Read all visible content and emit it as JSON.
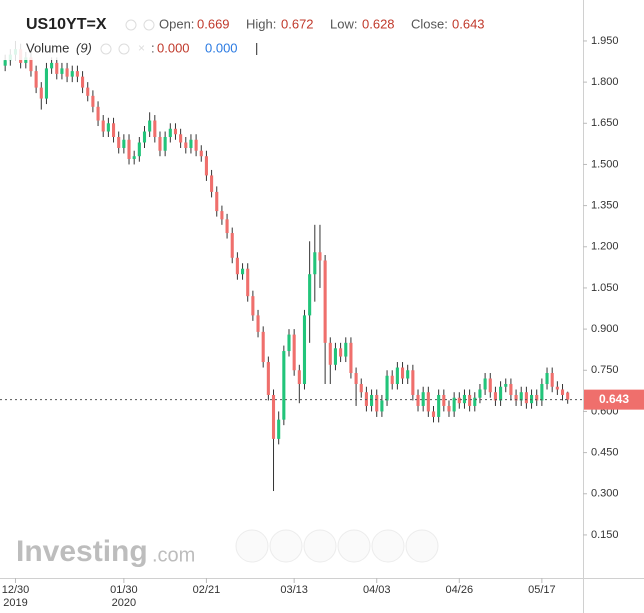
{
  "chart_data": {
    "type": "candlestick",
    "symbol": "US10YT=X",
    "header_labels": {
      "open": "Open:",
      "high": "High:",
      "low": "Low:",
      "close": "Close:"
    },
    "volume_label": "Volume",
    "volume_period": "(9)",
    "volume_values": [
      "0.000",
      "0.000"
    ],
    "watermark": {
      "brand": "Investing",
      "suffix": ".com"
    },
    "up_color": "#22c47a",
    "down_color": "#ef6f6c",
    "grid": false,
    "xlim": [
      -1,
      111
    ],
    "xticks": [
      {
        "value": 2,
        "label": "12/30"
      },
      {
        "value": 23,
        "label": "01/30"
      },
      {
        "value": 39,
        "label": "02/21"
      },
      {
        "value": 56,
        "label": "03/13"
      },
      {
        "value": 72,
        "label": "04/03"
      },
      {
        "value": 88,
        "label": "04/26"
      },
      {
        "value": 104,
        "label": "05/17"
      }
    ],
    "xtick_years": [
      {
        "value": 2,
        "label": "2019"
      },
      {
        "value": 23,
        "label": "2020"
      }
    ],
    "ylim": [
      0.004,
      2.081
    ],
    "yticks": [
      {
        "value": 1.95,
        "label": "1.950"
      },
      {
        "value": 1.8,
        "label": "1.800"
      },
      {
        "value": 1.65,
        "label": "1.650"
      },
      {
        "value": 1.5,
        "label": "1.500"
      },
      {
        "value": 1.35,
        "label": "1.350"
      },
      {
        "value": 1.2,
        "label": "1.200"
      },
      {
        "value": 1.05,
        "label": "1.050"
      },
      {
        "value": 0.9,
        "label": "0.900"
      },
      {
        "value": 0.75,
        "label": "0.750"
      },
      {
        "value": 0.6,
        "label": "0.600"
      },
      {
        "value": 0.45,
        "label": "0.450"
      },
      {
        "value": 0.3,
        "label": "0.300"
      },
      {
        "value": 0.15,
        "label": "0.150"
      }
    ],
    "open": [
      1.86,
      1.88,
      1.9,
      1.92,
      1.87,
      1.89,
      1.84,
      1.78,
      1.74,
      1.85,
      1.87,
      1.83,
      1.85,
      1.82,
      1.84,
      1.82,
      1.78,
      1.75,
      1.71,
      1.66,
      1.62,
      1.65,
      1.6,
      1.56,
      1.59,
      1.52,
      1.53,
      1.58,
      1.62,
      1.66,
      1.6,
      1.55,
      1.6,
      1.63,
      1.61,
      1.58,
      1.56,
      1.59,
      1.55,
      1.53,
      1.46,
      1.4,
      1.33,
      1.3,
      1.25,
      1.16,
      1.1,
      1.12,
      1.02,
      0.95,
      0.89,
      0.78,
      0.66,
      0.5,
      0.57,
      0.82,
      0.88,
      0.75,
      0.7,
      0.95,
      1.1,
      1.18,
      1.15,
      0.85,
      0.77,
      0.83,
      0.8,
      0.85,
      0.74,
      0.7,
      0.67,
      0.62,
      0.66,
      0.6,
      0.64,
      0.73,
      0.7,
      0.76,
      0.72,
      0.75,
      0.66,
      0.62,
      0.67,
      0.6,
      0.58,
      0.66,
      0.62,
      0.6,
      0.65,
      0.63,
      0.66,
      0.62,
      0.65,
      0.68,
      0.72,
      0.67,
      0.64,
      0.69,
      0.7,
      0.66,
      0.64,
      0.67,
      0.63,
      0.66,
      0.64,
      0.7,
      0.74,
      0.69,
      0.68,
      0.669
    ],
    "high": [
      1.9,
      1.92,
      1.95,
      1.94,
      1.91,
      1.91,
      1.86,
      1.8,
      1.87,
      1.89,
      1.89,
      1.87,
      1.87,
      1.86,
      1.86,
      1.84,
      1.8,
      1.77,
      1.73,
      1.68,
      1.67,
      1.67,
      1.62,
      1.61,
      1.61,
      1.55,
      1.6,
      1.64,
      1.69,
      1.68,
      1.62,
      1.62,
      1.65,
      1.65,
      1.63,
      1.6,
      1.61,
      1.61,
      1.57,
      1.55,
      1.48,
      1.42,
      1.35,
      1.32,
      1.27,
      1.18,
      1.14,
      1.14,
      1.04,
      0.97,
      0.91,
      0.8,
      0.68,
      0.6,
      0.84,
      0.9,
      0.9,
      0.77,
      0.97,
      1.22,
      1.28,
      1.28,
      1.17,
      0.87,
      0.85,
      0.85,
      0.87,
      0.87,
      0.76,
      0.72,
      0.69,
      0.68,
      0.68,
      0.66,
      0.75,
      0.75,
      0.78,
      0.78,
      0.77,
      0.77,
      0.68,
      0.69,
      0.69,
      0.62,
      0.68,
      0.68,
      0.64,
      0.67,
      0.67,
      0.68,
      0.68,
      0.67,
      0.7,
      0.74,
      0.74,
      0.69,
      0.71,
      0.72,
      0.72,
      0.68,
      0.69,
      0.69,
      0.68,
      0.68,
      0.72,
      0.76,
      0.76,
      0.71,
      0.7,
      0.672
    ],
    "low": [
      1.84,
      1.86,
      1.88,
      1.85,
      1.85,
      1.82,
      1.76,
      1.7,
      1.72,
      1.83,
      1.81,
      1.81,
      1.8,
      1.8,
      1.8,
      1.76,
      1.73,
      1.69,
      1.64,
      1.6,
      1.6,
      1.58,
      1.54,
      1.54,
      1.5,
      1.5,
      1.51,
      1.56,
      1.6,
      1.58,
      1.53,
      1.53,
      1.58,
      1.59,
      1.56,
      1.54,
      1.54,
      1.53,
      1.51,
      1.44,
      1.38,
      1.31,
      1.28,
      1.23,
      1.14,
      1.08,
      1.08,
      1.0,
      0.93,
      0.87,
      0.76,
      0.64,
      0.31,
      0.48,
      0.55,
      0.8,
      0.73,
      0.63,
      0.68,
      0.85,
      1.0,
      1.05,
      0.7,
      0.7,
      0.75,
      0.78,
      0.78,
      0.72,
      0.62,
      0.65,
      0.6,
      0.6,
      0.58,
      0.58,
      0.62,
      0.68,
      0.68,
      0.7,
      0.7,
      0.64,
      0.6,
      0.6,
      0.58,
      0.56,
      0.56,
      0.6,
      0.58,
      0.58,
      0.61,
      0.61,
      0.6,
      0.6,
      0.63,
      0.66,
      0.65,
      0.62,
      0.62,
      0.67,
      0.64,
      0.62,
      0.62,
      0.61,
      0.61,
      0.62,
      0.62,
      0.68,
      0.67,
      0.66,
      0.64,
      0.628
    ],
    "close": [
      1.88,
      1.9,
      1.92,
      1.87,
      1.89,
      1.84,
      1.78,
      1.74,
      1.85,
      1.87,
      1.83,
      1.85,
      1.82,
      1.84,
      1.82,
      1.78,
      1.75,
      1.71,
      1.66,
      1.62,
      1.65,
      1.6,
      1.56,
      1.59,
      1.52,
      1.53,
      1.58,
      1.62,
      1.66,
      1.6,
      1.55,
      1.6,
      1.63,
      1.61,
      1.58,
      1.56,
      1.59,
      1.55,
      1.53,
      1.46,
      1.4,
      1.33,
      1.3,
      1.25,
      1.16,
      1.1,
      1.12,
      1.02,
      0.95,
      0.89,
      0.78,
      0.66,
      0.5,
      0.57,
      0.82,
      0.88,
      0.75,
      0.7,
      0.95,
      1.1,
      1.18,
      1.15,
      0.85,
      0.77,
      0.83,
      0.8,
      0.85,
      0.74,
      0.7,
      0.67,
      0.62,
      0.66,
      0.6,
      0.64,
      0.73,
      0.7,
      0.76,
      0.72,
      0.75,
      0.66,
      0.62,
      0.67,
      0.6,
      0.58,
      0.66,
      0.62,
      0.6,
      0.65,
      0.63,
      0.66,
      0.62,
      0.65,
      0.68,
      0.72,
      0.67,
      0.64,
      0.69,
      0.7,
      0.66,
      0.64,
      0.67,
      0.63,
      0.66,
      0.64,
      0.7,
      0.74,
      0.69,
      0.68,
      0.66,
      0.643
    ]
  }
}
